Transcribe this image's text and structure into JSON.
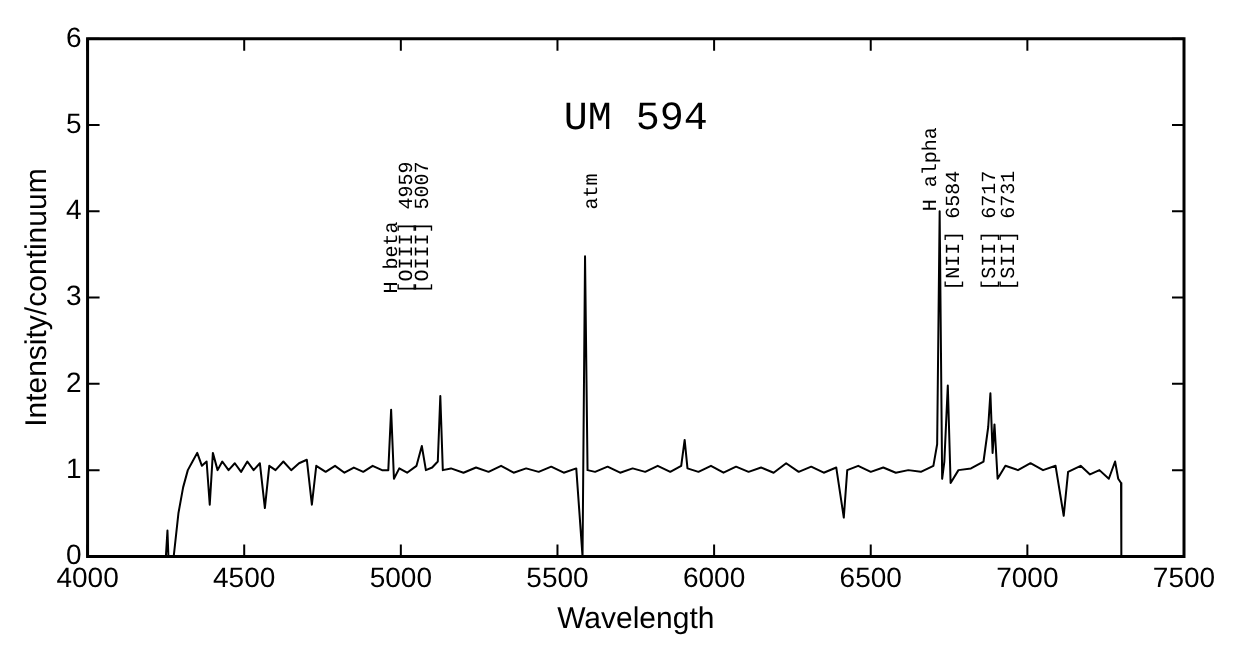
{
  "chart_data": {
    "type": "line",
    "title": "UM 594",
    "xlabel": "Wavelength",
    "ylabel": "Intensity/continuum",
    "xlim": [
      4000,
      7500
    ],
    "xticks": [
      4000,
      4500,
      5000,
      5500,
      6000,
      6500,
      7000,
      7500
    ],
    "ylim": [
      0,
      6
    ],
    "yticks": [
      0,
      1,
      2,
      3,
      4,
      5,
      6
    ],
    "grid": false,
    "legend": false,
    "marker": "none",
    "line_style": "solid",
    "series": [
      {
        "color": "#000000",
        "x": [
          4250,
          4255,
          4258,
          4275,
          4290,
          4305,
          4320,
          4335,
          4350,
          4365,
          4380,
          4390,
          4400,
          4415,
          4430,
          4450,
          4470,
          4490,
          4510,
          4530,
          4550,
          4566,
          4580,
          4600,
          4625,
          4650,
          4675,
          4700,
          4716,
          4730,
          4760,
          4790,
          4820,
          4850,
          4880,
          4910,
          4940,
          4960,
          4969,
          4978,
          4995,
          5020,
          5050,
          5067,
          5080,
          5100,
          5118,
          5126,
          5134,
          5160,
          5200,
          5240,
          5280,
          5320,
          5360,
          5400,
          5440,
          5480,
          5520,
          5560,
          5580,
          5588,
          5596,
          5620,
          5660,
          5700,
          5740,
          5780,
          5820,
          5860,
          5895,
          5906,
          5915,
          5950,
          5990,
          6030,
          6070,
          6110,
          6150,
          6190,
          6230,
          6270,
          6310,
          6350,
          6390,
          6414,
          6425,
          6460,
          6500,
          6540,
          6580,
          6620,
          6660,
          6700,
          6712,
          6720,
          6728,
          6735,
          6746,
          6755,
          6780,
          6820,
          6860,
          6875,
          6882,
          6889,
          6895,
          6905,
          6930,
          6970,
          7010,
          7050,
          7090,
          7116,
          7130,
          7170,
          7200,
          7230,
          7260,
          7280,
          7290,
          7299,
          7300
        ],
        "values": [
          0,
          0.3,
          0,
          0,
          0.5,
          0.8,
          1.0,
          1.1,
          1.2,
          1.05,
          1.1,
          0.6,
          1.2,
          1.0,
          1.1,
          1.0,
          1.08,
          0.98,
          1.1,
          1.0,
          1.08,
          0.56,
          1.05,
          1.0,
          1.1,
          1.0,
          1.08,
          1.12,
          0.6,
          1.05,
          0.98,
          1.05,
          0.97,
          1.03,
          0.98,
          1.05,
          1.0,
          1.0,
          1.7,
          0.9,
          1.02,
          0.97,
          1.05,
          1.28,
          1.0,
          1.03,
          1.1,
          1.86,
          1.0,
          1.02,
          0.97,
          1.03,
          0.98,
          1.05,
          0.97,
          1.02,
          0.98,
          1.04,
          0.97,
          1.02,
          0,
          3.48,
          1.0,
          0.98,
          1.04,
          0.97,
          1.02,
          0.98,
          1.05,
          0.98,
          1.05,
          1.35,
          1.02,
          0.98,
          1.05,
          0.97,
          1.04,
          0.98,
          1.03,
          0.97,
          1.08,
          0.98,
          1.04,
          0.97,
          1.03,
          0.45,
          1.0,
          1.05,
          0.98,
          1.03,
          0.97,
          1.0,
          0.98,
          1.05,
          1.3,
          4.0,
          0.9,
          1.1,
          1.98,
          0.85,
          1.0,
          1.02,
          1.1,
          1.5,
          1.89,
          1.2,
          1.53,
          0.9,
          1.05,
          1.0,
          1.08,
          1.0,
          1.05,
          0.47,
          0.98,
          1.05,
          0.95,
          1.0,
          0.9,
          1.1,
          0.9,
          0.85,
          0
        ]
      }
    ],
    "annotations": [
      "H beta",
      "[OIII] 4959",
      "[OIII] 5007",
      "atm",
      "H alpha",
      "[NII] 6584",
      "[SII] 6717",
      "[SII] 6731"
    ]
  }
}
